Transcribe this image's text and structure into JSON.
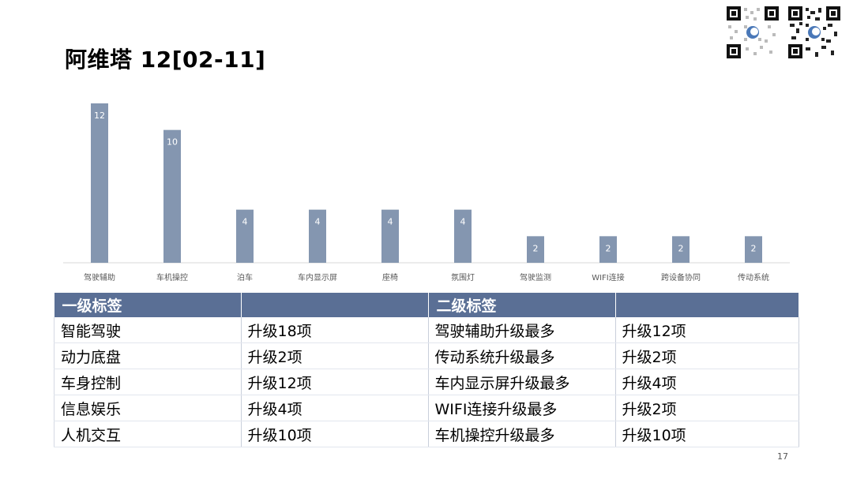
{
  "title": "阿维塔 12[02-11]",
  "chart_data": {
    "type": "bar",
    "categories": [
      "驾驶辅助",
      "车机操控",
      "泊车",
      "车内显示屏",
      "座椅",
      "氛围灯",
      "驾驶监测",
      "WIFI连接",
      "跨设备协同",
      "传动系统"
    ],
    "values": [
      12,
      10,
      4,
      4,
      4,
      4,
      2,
      2,
      2,
      2
    ],
    "ylim": [
      0,
      12
    ],
    "bar_color": "#8496b0",
    "grid": false
  },
  "table": {
    "headers": [
      "一级标签",
      "",
      "二级标签",
      ""
    ],
    "rows": [
      [
        "智能驾驶",
        "升级18项",
        "驾驶辅助升级最多",
        "升级12项"
      ],
      [
        "动力底盘",
        "升级2项",
        "传动系统升级最多",
        "升级2项"
      ],
      [
        "车身控制",
        "升级12项",
        "车内显示屏升级最多",
        "升级4项"
      ],
      [
        "信息娱乐",
        "升级4项",
        "WIFI连接升级最多",
        "升级2项"
      ],
      [
        "人机交互",
        "升级10项",
        "车机操控升级最多",
        "升级10项"
      ]
    ],
    "header_color": "#5a6f95"
  },
  "page_number": "17",
  "icons": [
    "qr-code-icon",
    "qr-code-icon"
  ]
}
